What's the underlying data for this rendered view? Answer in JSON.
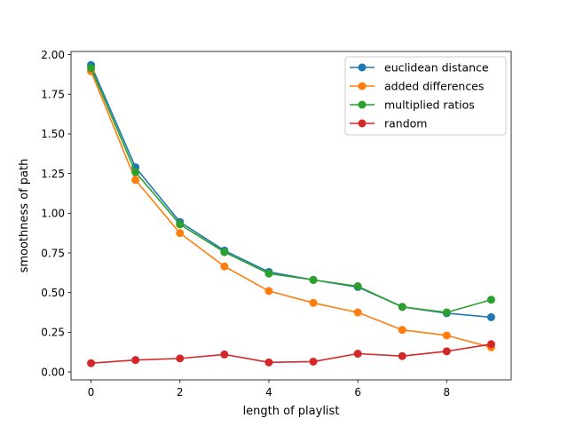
{
  "chart_data": {
    "type": "line",
    "title": "",
    "xlabel": "length of playlist",
    "ylabel": "smoothness of path",
    "xlim": [
      -0.45,
      9.45
    ],
    "ylim": [
      -0.05,
      2.02
    ],
    "xticks": [
      0,
      2,
      4,
      6,
      8
    ],
    "xtick_labels": [
      "0",
      "2",
      "4",
      "6",
      "8"
    ],
    "yticks": [
      0.0,
      0.25,
      0.5,
      0.75,
      1.0,
      1.25,
      1.5,
      1.75,
      2.0
    ],
    "ytick_labels": [
      "0.00",
      "0.25",
      "0.50",
      "0.75",
      "1.00",
      "1.25",
      "1.50",
      "1.75",
      "2.00"
    ],
    "grid": false,
    "legend_position": "top-right",
    "x": [
      0,
      1,
      2,
      3,
      4,
      5,
      6,
      7,
      8,
      9
    ],
    "series": [
      {
        "name": "euclidean distance",
        "color": "#1f77b4",
        "values": [
          1.935,
          1.29,
          0.945,
          0.765,
          0.63,
          0.58,
          0.535,
          0.41,
          0.37,
          0.345
        ]
      },
      {
        "name": "added differences",
        "color": "#ff7f0e",
        "values": [
          1.895,
          1.21,
          0.875,
          0.665,
          0.51,
          0.435,
          0.375,
          0.265,
          0.23,
          0.155
        ]
      },
      {
        "name": "multiplied ratios",
        "color": "#2ca02c",
        "values": [
          1.915,
          1.26,
          0.93,
          0.755,
          0.62,
          0.58,
          0.54,
          0.41,
          0.375,
          0.455
        ]
      },
      {
        "name": "random",
        "color": "#d62728",
        "values": [
          0.055,
          0.075,
          0.085,
          0.11,
          0.06,
          0.065,
          0.115,
          0.1,
          0.13,
          0.175
        ]
      }
    ]
  }
}
